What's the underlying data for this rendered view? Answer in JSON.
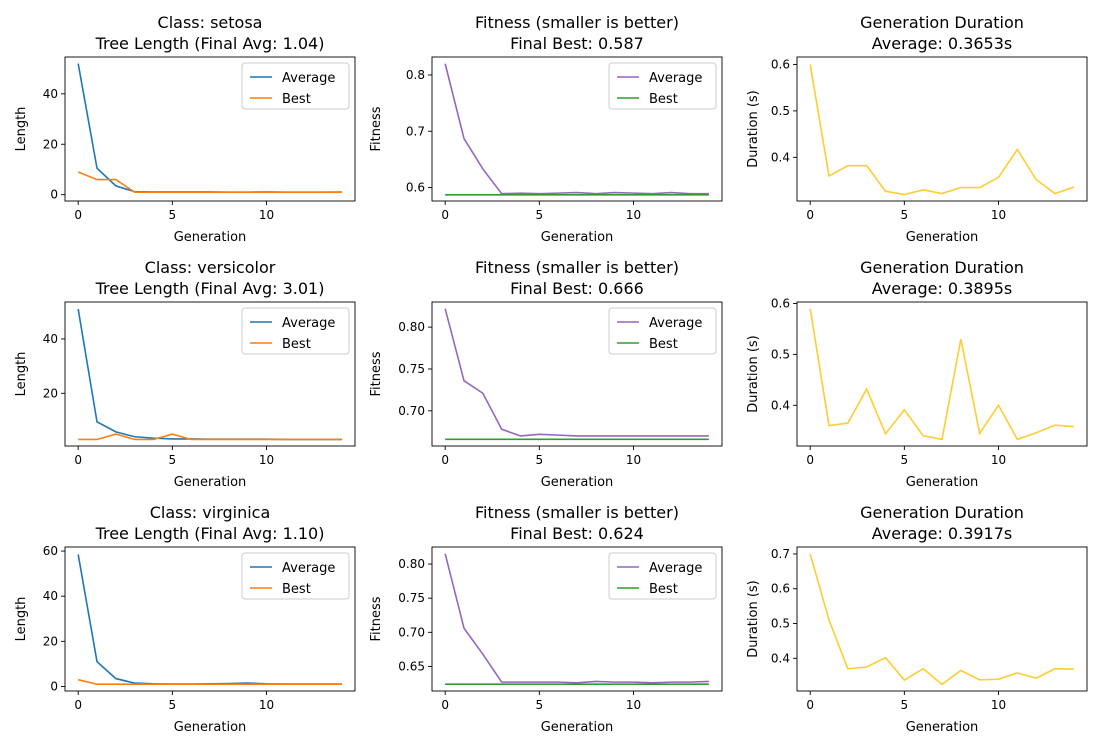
{
  "colors": {
    "average": "#1f77b4",
    "best": "#ff7f0e",
    "fitness_average": "#9467bd",
    "fitness_best": "#2ca02c",
    "duration": "#ffcc33"
  },
  "chart_data": [
    {
      "type": "line",
      "title": [
        "Class: setosa",
        "Tree Length (Final Avg: 1.04)"
      ],
      "xlabel": "Generation",
      "ylabel": "Length",
      "x": [
        0,
        1,
        2,
        3,
        4,
        5,
        6,
        7,
        8,
        9,
        10,
        11,
        12,
        13,
        14
      ],
      "xlim": [
        -0.7,
        14.7
      ],
      "ylim": [
        -2.5,
        54.6
      ],
      "xticks": [
        0,
        5,
        10
      ],
      "xtick_labels": [
        "0",
        "5",
        "10"
      ],
      "yticks": [
        0,
        20,
        40
      ],
      "ytick_labels": [
        "0",
        "20",
        "40"
      ],
      "legend": "top-right",
      "series": [
        {
          "name": "Average",
          "color_key": "average",
          "values": [
            52,
            10.5,
            3.5,
            1.2,
            1.1,
            1.1,
            1.1,
            1.1,
            1.0,
            1.0,
            1.1,
            1.0,
            1.0,
            1.0,
            1.04
          ]
        },
        {
          "name": "Best",
          "color_key": "best",
          "values": [
            9,
            6,
            6,
            1,
            1,
            1,
            1,
            1,
            1,
            1,
            1,
            1,
            1,
            1,
            1
          ]
        }
      ]
    },
    {
      "type": "line",
      "title": [
        "Fitness (smaller is better)",
        "Final Best: 0.587"
      ],
      "xlabel": "Generation",
      "ylabel": "Fitness",
      "x": [
        0,
        1,
        2,
        3,
        4,
        5,
        6,
        7,
        8,
        9,
        10,
        11,
        12,
        13,
        14
      ],
      "xlim": [
        -0.7,
        14.7
      ],
      "ylim": [
        0.576,
        0.832
      ],
      "xticks": [
        0,
        5,
        10
      ],
      "xtick_labels": [
        "0",
        "5",
        "10"
      ],
      "yticks": [
        0.6,
        0.7,
        0.8
      ],
      "ytick_labels": [
        "0.6",
        "0.7",
        "0.8"
      ],
      "legend": "top-right",
      "series": [
        {
          "name": "Average",
          "color_key": "fitness_average",
          "values": [
            0.82,
            0.687,
            0.633,
            0.589,
            0.59,
            0.589,
            0.59,
            0.591,
            0.589,
            0.591,
            0.59,
            0.589,
            0.591,
            0.589,
            0.589
          ]
        },
        {
          "name": "Best",
          "color_key": "fitness_best",
          "values": [
            0.587,
            0.587,
            0.587,
            0.587,
            0.587,
            0.587,
            0.587,
            0.587,
            0.587,
            0.587,
            0.587,
            0.587,
            0.587,
            0.587,
            0.587
          ]
        }
      ]
    },
    {
      "type": "line",
      "title": [
        "Generation Duration",
        "Average: 0.3653s"
      ],
      "xlabel": "Generation",
      "ylabel": "Duration (s)",
      "x": [
        0,
        1,
        2,
        3,
        4,
        5,
        6,
        7,
        8,
        9,
        10,
        11,
        12,
        13,
        14
      ],
      "xlim": [
        -0.7,
        14.7
      ],
      "ylim": [
        0.306,
        0.616
      ],
      "xticks": [
        0,
        5,
        10
      ],
      "xtick_labels": [
        "0",
        "5",
        "10"
      ],
      "yticks": [
        0.4,
        0.5,
        0.6
      ],
      "ytick_labels": [
        "0.4",
        "0.5",
        "0.6"
      ],
      "series": [
        {
          "name": "",
          "color_key": "duration",
          "values": [
            0.6,
            0.36,
            0.382,
            0.382,
            0.327,
            0.32,
            0.33,
            0.322,
            0.335,
            0.335,
            0.357,
            0.417,
            0.352,
            0.322,
            0.336
          ]
        }
      ]
    },
    {
      "type": "line",
      "title": [
        "Class: versicolor",
        "Tree Length (Final Avg: 3.01)"
      ],
      "xlabel": "Generation",
      "ylabel": "Length",
      "x": [
        0,
        1,
        2,
        3,
        4,
        5,
        6,
        7,
        8,
        9,
        10,
        11,
        12,
        13,
        14
      ],
      "xlim": [
        -0.7,
        14.7
      ],
      "ylim": [
        0.6,
        53.6
      ],
      "xticks": [
        0,
        5,
        10
      ],
      "xtick_labels": [
        "0",
        "5",
        "10"
      ],
      "yticks": [
        20,
        40
      ],
      "ytick_labels": [
        "20",
        "40"
      ],
      "legend": "top-right",
      "series": [
        {
          "name": "Average",
          "color_key": "average",
          "values": [
            51,
            9.5,
            5.8,
            4.0,
            3.5,
            3.2,
            3.2,
            3.1,
            3.1,
            3.1,
            3.1,
            3.0,
            3.0,
            3.0,
            3.01
          ]
        },
        {
          "name": "Best",
          "color_key": "best",
          "values": [
            3,
            3,
            5,
            3,
            3,
            5,
            3,
            3,
            3,
            3,
            3,
            3,
            3,
            3,
            3
          ]
        }
      ]
    },
    {
      "type": "line",
      "title": [
        "Fitness (smaller is better)",
        "Final Best: 0.666"
      ],
      "xlabel": "Generation",
      "ylabel": "Fitness",
      "x": [
        0,
        1,
        2,
        3,
        4,
        5,
        6,
        7,
        8,
        9,
        10,
        11,
        12,
        13,
        14
      ],
      "xlim": [
        -0.7,
        14.7
      ],
      "ylim": [
        0.658,
        0.83
      ],
      "xticks": [
        0,
        5,
        10
      ],
      "xtick_labels": [
        "0",
        "5",
        "10"
      ],
      "yticks": [
        0.7,
        0.75,
        0.8
      ],
      "ytick_labels": [
        "0.70",
        "0.75",
        "0.80"
      ],
      "legend": "top-right",
      "series": [
        {
          "name": "Average",
          "color_key": "fitness_average",
          "values": [
            0.822,
            0.736,
            0.721,
            0.678,
            0.67,
            0.672,
            0.671,
            0.67,
            0.67,
            0.67,
            0.67,
            0.67,
            0.67,
            0.67,
            0.67
          ]
        },
        {
          "name": "Best",
          "color_key": "fitness_best",
          "values": [
            0.666,
            0.666,
            0.666,
            0.666,
            0.666,
            0.666,
            0.666,
            0.666,
            0.666,
            0.666,
            0.666,
            0.666,
            0.666,
            0.666,
            0.666
          ]
        }
      ]
    },
    {
      "type": "line",
      "title": [
        "Generation Duration",
        "Average: 0.3895s"
      ],
      "xlabel": "Generation",
      "ylabel": "Duration (s)",
      "x": [
        0,
        1,
        2,
        3,
        4,
        5,
        6,
        7,
        8,
        9,
        10,
        11,
        12,
        13,
        14
      ],
      "xlim": [
        -0.7,
        14.7
      ],
      "ylim": [
        0.32,
        0.603
      ],
      "xticks": [
        0,
        5,
        10
      ],
      "xtick_labels": [
        "0",
        "5",
        "10"
      ],
      "yticks": [
        0.4,
        0.5,
        0.6
      ],
      "ytick_labels": [
        "0.4",
        "0.5",
        "0.6"
      ],
      "series": [
        {
          "name": "",
          "color_key": "duration",
          "values": [
            0.59,
            0.36,
            0.365,
            0.432,
            0.344,
            0.391,
            0.34,
            0.333,
            0.53,
            0.345,
            0.4,
            0.333,
            0.346,
            0.361,
            0.358
          ]
        }
      ]
    },
    {
      "type": "line",
      "title": [
        "Class: virginica",
        "Tree Length (Final Avg: 1.10)"
      ],
      "xlabel": "Generation",
      "ylabel": "Length",
      "x": [
        0,
        1,
        2,
        3,
        4,
        5,
        6,
        7,
        8,
        9,
        10,
        11,
        12,
        13,
        14
      ],
      "xlim": [
        -0.7,
        14.7
      ],
      "ylim": [
        -2.0,
        61.8
      ],
      "xticks": [
        0,
        5,
        10
      ],
      "xtick_labels": [
        "0",
        "5",
        "10"
      ],
      "yticks": [
        0,
        20,
        40,
        60
      ],
      "ytick_labels": [
        "0",
        "20",
        "40",
        "60"
      ],
      "legend": "top-right",
      "series": [
        {
          "name": "Average",
          "color_key": "average",
          "values": [
            58.5,
            11,
            3.5,
            1.5,
            1.2,
            1.1,
            1.1,
            1.2,
            1.3,
            1.5,
            1.2,
            1.1,
            1.1,
            1.1,
            1.1
          ]
        },
        {
          "name": "Best",
          "color_key": "best",
          "values": [
            3,
            1,
            1,
            1,
            1,
            1,
            1,
            1,
            1,
            1,
            1,
            1,
            1,
            1,
            1
          ]
        }
      ]
    },
    {
      "type": "line",
      "title": [
        "Fitness (smaller is better)",
        "Final Best: 0.624"
      ],
      "xlabel": "Generation",
      "ylabel": "Fitness",
      "x": [
        0,
        1,
        2,
        3,
        4,
        5,
        6,
        7,
        8,
        9,
        10,
        11,
        12,
        13,
        14
      ],
      "xlim": [
        -0.7,
        14.7
      ],
      "ylim": [
        0.614,
        0.825
      ],
      "xticks": [
        0,
        5,
        10
      ],
      "xtick_labels": [
        "0",
        "5",
        "10"
      ],
      "yticks": [
        0.65,
        0.7,
        0.75,
        0.8
      ],
      "ytick_labels": [
        "0.65",
        "0.70",
        "0.75",
        "0.80"
      ],
      "legend": "top-right",
      "series": [
        {
          "name": "Average",
          "color_key": "fitness_average",
          "values": [
            0.815,
            0.706,
            0.668,
            0.627,
            0.627,
            0.627,
            0.627,
            0.626,
            0.628,
            0.627,
            0.627,
            0.626,
            0.627,
            0.627,
            0.628
          ]
        },
        {
          "name": "Best",
          "color_key": "fitness_best",
          "values": [
            0.624,
            0.624,
            0.624,
            0.624,
            0.624,
            0.624,
            0.624,
            0.624,
            0.624,
            0.624,
            0.624,
            0.624,
            0.624,
            0.624,
            0.624
          ]
        }
      ]
    },
    {
      "type": "line",
      "title": [
        "Generation Duration",
        "Average: 0.3917s"
      ],
      "xlabel": "Generation",
      "ylabel": "Duration (s)",
      "x": [
        0,
        1,
        2,
        3,
        4,
        5,
        6,
        7,
        8,
        9,
        10,
        11,
        12,
        13,
        14
      ],
      "xlim": [
        -0.7,
        14.7
      ],
      "ylim": [
        0.306,
        0.72
      ],
      "xticks": [
        0,
        5,
        10
      ],
      "xtick_labels": [
        "0",
        "5",
        "10"
      ],
      "yticks": [
        0.4,
        0.5,
        0.6,
        0.7
      ],
      "ytick_labels": [
        "0.4",
        "0.5",
        "0.6",
        "0.7"
      ],
      "series": [
        {
          "name": "",
          "color_key": "duration",
          "values": [
            0.7,
            0.51,
            0.37,
            0.375,
            0.402,
            0.337,
            0.37,
            0.325,
            0.365,
            0.338,
            0.34,
            0.358,
            0.343,
            0.37,
            0.369
          ]
        }
      ]
    }
  ]
}
